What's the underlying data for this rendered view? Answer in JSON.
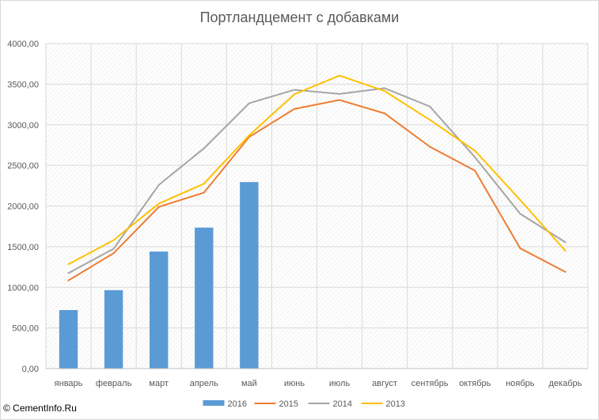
{
  "chart_data": {
    "type": "bar+line",
    "title": "Портландцемент с добавками",
    "categories": [
      "январь",
      "февраль",
      "март",
      "апрель",
      "май",
      "июнь",
      "июль",
      "август",
      "сентябрь",
      "октябрь",
      "ноябрь",
      "декабрь"
    ],
    "ylim": [
      0,
      4000
    ],
    "yticks": [
      "0,00",
      "500,00",
      "1000,00",
      "1500,00",
      "2000,00",
      "2500,00",
      "3000,00",
      "3500,00",
      "4000,00"
    ],
    "grid": true,
    "legend_position": "bottom",
    "series": [
      {
        "name": "2016",
        "type": "bar",
        "color": "#5b9bd5",
        "values": [
          720,
          965,
          1440,
          1735,
          2295,
          null,
          null,
          null,
          null,
          null,
          null,
          null
        ]
      },
      {
        "name": "2015",
        "type": "line",
        "color": "#ed7d31",
        "values": [
          1085,
          1420,
          1990,
          2165,
          2850,
          3195,
          3305,
          3140,
          2730,
          2435,
          1480,
          1190
        ]
      },
      {
        "name": "2014",
        "type": "line",
        "color": "#a5a5a5",
        "values": [
          1175,
          1475,
          2260,
          2710,
          3265,
          3430,
          3380,
          3450,
          3225,
          2600,
          1905,
          1555
        ]
      },
      {
        "name": "2013",
        "type": "line",
        "color": "#ffc000",
        "values": [
          1285,
          1580,
          2030,
          2275,
          2870,
          3375,
          3605,
          3415,
          3060,
          2680,
          2075,
          1450
        ]
      }
    ]
  },
  "watermark": "© CementInfo.Ru"
}
